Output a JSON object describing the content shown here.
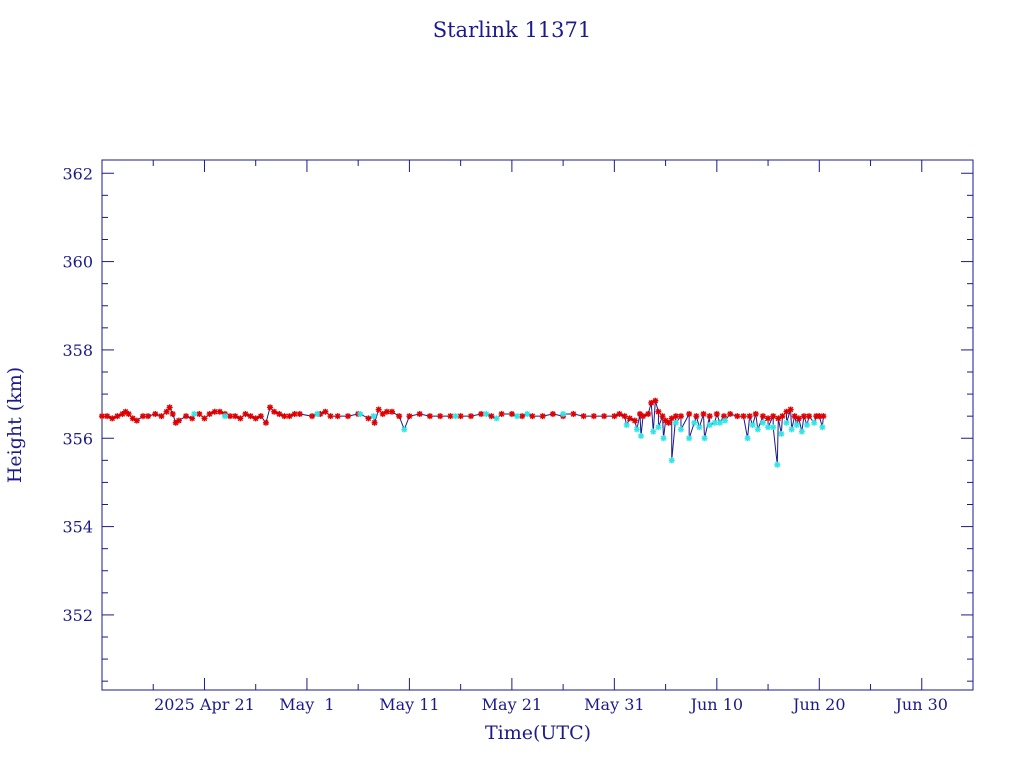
{
  "colors": {
    "axis": "#1a1a8c",
    "line": "#1a1a8c",
    "marker_primary": "#e00000",
    "marker_secondary": "#33e5e5",
    "background": "#ffffff"
  },
  "chart_data": {
    "type": "line",
    "title": "Starlink 11371",
    "xlabel": "Time(UTC)",
    "ylabel": "Height (km)",
    "x_unit": "days from 2025 Apr 11",
    "xlim": [
      0,
      85
    ],
    "ylim": [
      350.3,
      362.3
    ],
    "yticks": [
      352,
      354,
      356,
      358,
      360,
      362
    ],
    "ytick_labels": [
      "352",
      "354",
      "356",
      "358",
      "360",
      "362"
    ],
    "xticks": [
      10,
      20,
      30,
      40,
      50,
      60,
      70,
      80
    ],
    "xtick_labels": [
      "2025 Apr 21",
      "May  1",
      "May 11",
      "May 21",
      "May 31",
      "Jun 10",
      "Jun 20",
      "Jun 30"
    ],
    "grid": false,
    "series": [
      {
        "marker": "asterisk",
        "color": "#e00000",
        "points": [
          [
            0.0,
            356.5
          ],
          [
            0.5,
            356.5
          ],
          [
            1.0,
            356.45
          ],
          [
            1.5,
            356.5
          ],
          [
            2.0,
            356.55
          ],
          [
            2.3,
            356.6
          ],
          [
            2.6,
            356.55
          ],
          [
            3.0,
            356.45
          ],
          [
            3.4,
            356.4
          ],
          [
            4.0,
            356.5
          ],
          [
            4.5,
            356.5
          ],
          [
            5.2,
            356.55
          ],
          [
            5.8,
            356.5
          ],
          [
            6.3,
            356.6
          ],
          [
            6.6,
            356.7
          ],
          [
            6.9,
            356.55
          ],
          [
            7.2,
            356.35
          ],
          [
            7.5,
            356.4
          ],
          [
            8.2,
            356.5
          ],
          [
            8.8,
            356.45
          ],
          [
            9.5,
            356.55
          ],
          [
            10.0,
            356.45
          ],
          [
            10.5,
            356.55
          ],
          [
            11.0,
            356.6
          ],
          [
            11.5,
            356.6
          ],
          [
            12.0,
            356.55
          ],
          [
            12.5,
            356.5
          ],
          [
            13.0,
            356.5
          ],
          [
            13.5,
            356.45
          ],
          [
            14.0,
            356.55
          ],
          [
            14.5,
            356.5
          ],
          [
            15.0,
            356.45
          ],
          [
            15.5,
            356.5
          ],
          [
            16.0,
            356.35
          ],
          [
            16.4,
            356.7
          ],
          [
            16.8,
            356.6
          ],
          [
            17.3,
            356.55
          ],
          [
            17.8,
            356.5
          ],
          [
            18.3,
            356.5
          ],
          [
            18.8,
            356.55
          ],
          [
            19.3,
            356.55
          ],
          [
            20.5,
            356.5
          ],
          [
            21.3,
            356.55
          ],
          [
            21.8,
            356.6
          ],
          [
            22.3,
            356.5
          ],
          [
            23.0,
            356.5
          ],
          [
            24.0,
            356.5
          ],
          [
            25.0,
            356.55
          ],
          [
            26.0,
            356.45
          ],
          [
            26.6,
            356.35
          ],
          [
            27.0,
            356.65
          ],
          [
            27.4,
            356.55
          ],
          [
            27.8,
            356.6
          ],
          [
            28.3,
            356.6
          ],
          [
            29.0,
            356.5
          ],
          [
            30.0,
            356.5
          ],
          [
            31.0,
            356.55
          ],
          [
            32.0,
            356.5
          ],
          [
            33.0,
            356.5
          ],
          [
            34.0,
            356.5
          ],
          [
            35.0,
            356.5
          ],
          [
            36.0,
            356.5
          ],
          [
            37.0,
            356.55
          ],
          [
            38.0,
            356.5
          ],
          [
            39.0,
            356.55
          ],
          [
            40.0,
            356.55
          ],
          [
            41.0,
            356.5
          ],
          [
            42.0,
            356.5
          ],
          [
            43.0,
            356.5
          ],
          [
            44.0,
            356.55
          ],
          [
            45.0,
            356.5
          ],
          [
            46.0,
            356.55
          ],
          [
            47.0,
            356.5
          ],
          [
            48.0,
            356.5
          ],
          [
            49.0,
            356.5
          ],
          [
            50.0,
            356.5
          ],
          [
            50.5,
            356.55
          ],
          [
            51.0,
            356.5
          ],
          [
            51.5,
            356.45
          ],
          [
            52.0,
            356.4
          ],
          [
            52.5,
            356.55
          ],
          [
            52.8,
            356.5
          ],
          [
            53.3,
            356.55
          ],
          [
            53.6,
            356.8
          ],
          [
            54.0,
            356.85
          ],
          [
            54.3,
            356.6
          ],
          [
            54.7,
            356.5
          ],
          [
            55.0,
            356.4
          ],
          [
            55.3,
            356.35
          ],
          [
            55.6,
            356.45
          ],
          [
            56.0,
            356.5
          ],
          [
            56.5,
            356.5
          ],
          [
            57.3,
            356.55
          ],
          [
            58.0,
            356.5
          ],
          [
            58.7,
            356.55
          ],
          [
            59.3,
            356.5
          ],
          [
            60.0,
            356.55
          ],
          [
            60.7,
            356.5
          ],
          [
            61.3,
            356.55
          ],
          [
            62.0,
            356.5
          ],
          [
            62.6,
            356.5
          ],
          [
            63.2,
            356.5
          ],
          [
            63.8,
            356.55
          ],
          [
            64.5,
            356.5
          ],
          [
            65.0,
            356.45
          ],
          [
            65.5,
            356.5
          ],
          [
            66.0,
            356.45
          ],
          [
            66.4,
            356.5
          ],
          [
            66.8,
            356.6
          ],
          [
            67.2,
            356.65
          ],
          [
            67.6,
            356.5
          ],
          [
            68.0,
            356.45
          ],
          [
            68.5,
            356.5
          ],
          [
            69.0,
            356.5
          ],
          [
            69.7,
            356.5
          ],
          [
            70.0,
            356.5
          ],
          [
            70.4,
            356.5
          ]
        ]
      },
      {
        "marker": "asterisk",
        "color": "#33e5e5",
        "points": [
          [
            9.0,
            356.55
          ],
          [
            12.0,
            356.5
          ],
          [
            21.0,
            356.55
          ],
          [
            25.2,
            356.55
          ],
          [
            26.5,
            356.5
          ],
          [
            29.5,
            356.2
          ],
          [
            34.5,
            356.5
          ],
          [
            37.5,
            356.55
          ],
          [
            38.5,
            356.45
          ],
          [
            40.5,
            356.5
          ],
          [
            41.5,
            356.55
          ],
          [
            45.0,
            356.55
          ],
          [
            51.2,
            356.3
          ],
          [
            52.2,
            356.2
          ],
          [
            52.6,
            356.05
          ],
          [
            53.8,
            356.15
          ],
          [
            54.3,
            356.25
          ],
          [
            54.8,
            356.0
          ],
          [
            55.6,
            355.5
          ],
          [
            56.0,
            356.35
          ],
          [
            56.5,
            356.2
          ],
          [
            57.3,
            356.0
          ],
          [
            57.8,
            356.35
          ],
          [
            58.3,
            356.25
          ],
          [
            58.8,
            356.0
          ],
          [
            59.3,
            356.3
          ],
          [
            59.8,
            356.35
          ],
          [
            60.3,
            356.35
          ],
          [
            60.8,
            356.4
          ],
          [
            63.0,
            356.0
          ],
          [
            63.5,
            356.3
          ],
          [
            64.0,
            356.2
          ],
          [
            64.5,
            356.35
          ],
          [
            65.0,
            356.25
          ],
          [
            65.5,
            356.25
          ],
          [
            65.9,
            355.4
          ],
          [
            66.3,
            356.1
          ],
          [
            66.8,
            356.35
          ],
          [
            67.3,
            356.2
          ],
          [
            67.8,
            356.3
          ],
          [
            68.3,
            356.15
          ],
          [
            68.8,
            356.3
          ],
          [
            69.5,
            356.35
          ],
          [
            70.3,
            356.25
          ]
        ]
      }
    ]
  }
}
